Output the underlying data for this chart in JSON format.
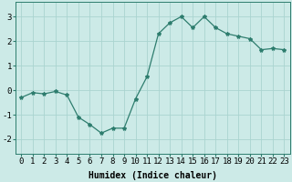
{
  "x": [
    0,
    1,
    2,
    3,
    4,
    5,
    6,
    7,
    8,
    9,
    10,
    11,
    12,
    13,
    14,
    15,
    16,
    17,
    18,
    19,
    20,
    21,
    22,
    23
  ],
  "y": [
    -0.3,
    -0.1,
    -0.15,
    -0.05,
    -0.2,
    -1.1,
    -1.4,
    -1.75,
    -1.55,
    -1.55,
    -0.35,
    0.55,
    2.3,
    2.75,
    3.0,
    2.55,
    3.0,
    2.55,
    2.3,
    2.2,
    2.1,
    1.65,
    1.7,
    1.65
  ],
  "line_color": "#2e7d6e",
  "marker": "*",
  "marker_size": 3.0,
  "bg_color": "#cceae7",
  "grid_color": "#aad4d0",
  "xlabel": "Humidex (Indice chaleur)",
  "xlabel_fontsize": 7,
  "ylim": [
    -2.6,
    3.6
  ],
  "xlim": [
    -0.5,
    23.5
  ],
  "yticks": [
    -2,
    -1,
    0,
    1,
    2,
    3
  ],
  "tick_fontsize": 6.5,
  "linewidth": 0.9
}
